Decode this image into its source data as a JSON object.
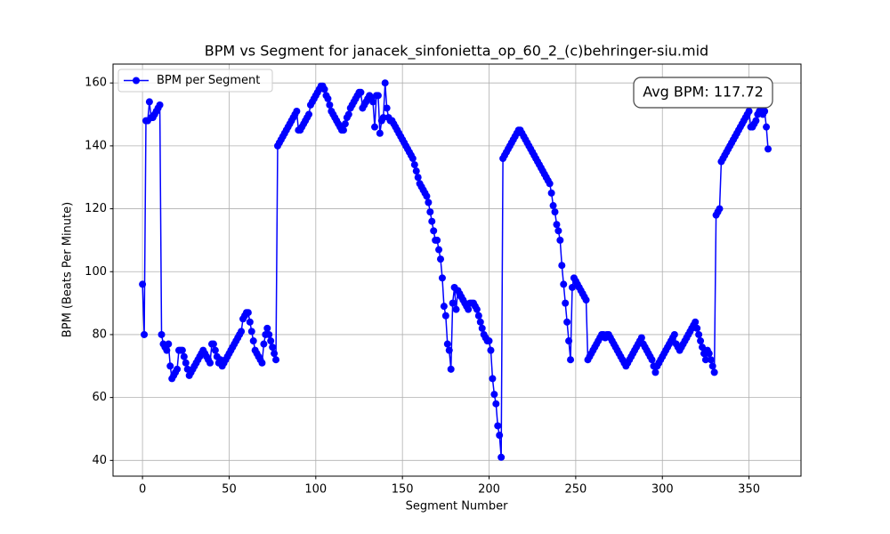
{
  "chart_data": {
    "type": "line",
    "title": "BPM vs Segment for janacek_sinfonietta_op_60_2_(c)behringer-siu.mid",
    "x_label": "Segment Number",
    "y_label": "BPM (Beats Per Minute)",
    "annotation": "Avg BPM: 117.72",
    "legend": "upper left",
    "grid": true,
    "xlim": [
      -17,
      380
    ],
    "ylim": [
      35,
      166
    ],
    "xticks": [
      0,
      50,
      100,
      150,
      200,
      250,
      300,
      350
    ],
    "yticks": [
      40,
      60,
      80,
      100,
      120,
      140,
      160
    ],
    "x": [
      0,
      1,
      2,
      3,
      4,
      5,
      6,
      7,
      8,
      9,
      10,
      11,
      12,
      13,
      14,
      15,
      16,
      17,
      18,
      19,
      20,
      21,
      22,
      23,
      24,
      25,
      26,
      27,
      28,
      29,
      30,
      31,
      32,
      33,
      34,
      35,
      36,
      37,
      38,
      39,
      40,
      41,
      42,
      43,
      44,
      45,
      46,
      47,
      48,
      49,
      50,
      51,
      52,
      53,
      54,
      55,
      56,
      57,
      58,
      59,
      60,
      61,
      62,
      63,
      64,
      65,
      66,
      67,
      68,
      69,
      70,
      71,
      72,
      73,
      74,
      75,
      76,
      77,
      78,
      79,
      80,
      81,
      82,
      83,
      84,
      85,
      86,
      87,
      88,
      89,
      90,
      91,
      92,
      93,
      94,
      95,
      96,
      97,
      98,
      99,
      100,
      101,
      102,
      103,
      104,
      105,
      106,
      107,
      108,
      109,
      110,
      111,
      112,
      113,
      114,
      115,
      116,
      117,
      118,
      119,
      120,
      121,
      122,
      123,
      124,
      125,
      126,
      127,
      128,
      129,
      130,
      131,
      132,
      133,
      134,
      135,
      136,
      137,
      138,
      139,
      140,
      141,
      142,
      143,
      144,
      145,
      146,
      147,
      148,
      149,
      150,
      151,
      152,
      153,
      154,
      155,
      156,
      157,
      158,
      159,
      160,
      161,
      162,
      163,
      164,
      165,
      166,
      167,
      168,
      169,
      170,
      171,
      172,
      173,
      174,
      175,
      176,
      177,
      178,
      179,
      180,
      181,
      182,
      183,
      184,
      185,
      186,
      187,
      188,
      189,
      190,
      191,
      192,
      193,
      194,
      195,
      196,
      197,
      198,
      199,
      200,
      201,
      202,
      203,
      204,
      205,
      206,
      207,
      208,
      209,
      210,
      211,
      212,
      213,
      214,
      215,
      216,
      217,
      218,
      219,
      220,
      221,
      222,
      223,
      224,
      225,
      226,
      227,
      228,
      229,
      230,
      231,
      232,
      233,
      234,
      235,
      236,
      237,
      238,
      239,
      240,
      241,
      242,
      243,
      244,
      245,
      246,
      247,
      248,
      249,
      250,
      251,
      252,
      253,
      254,
      255,
      256,
      257,
      258,
      259,
      260,
      261,
      262,
      263,
      264,
      265,
      266,
      267,
      268,
      269,
      270,
      271,
      272,
      273,
      274,
      275,
      276,
      277,
      278,
      279,
      280,
      281,
      282,
      283,
      284,
      285,
      286,
      287,
      288,
      289,
      290,
      291,
      292,
      293,
      294,
      295,
      296,
      297,
      298,
      299,
      300,
      301,
      302,
      303,
      304,
      305,
      306,
      307,
      308,
      309,
      310,
      311,
      312,
      313,
      314,
      315,
      316,
      317,
      318,
      319,
      320,
      321,
      322,
      323,
      324,
      325,
      326,
      327,
      328,
      329,
      330,
      331,
      332,
      333,
      334,
      335,
      336,
      337,
      338,
      339,
      340,
      341,
      342,
      343,
      344,
      345,
      346,
      347,
      348,
      349,
      350,
      351,
      352,
      353,
      354,
      355,
      356,
      357,
      358,
      359,
      360,
      361
    ],
    "series": [
      {
        "name": "BPM per Segment",
        "color": "#0000ff",
        "values": [
          96,
          80,
          148,
          148,
          154,
          149,
          149,
          150,
          151,
          152,
          153,
          80,
          77,
          76,
          75,
          77,
          70,
          66,
          67,
          68,
          69,
          75,
          75,
          75,
          73,
          71,
          69,
          67,
          68,
          69,
          70,
          71,
          72,
          73,
          74,
          75,
          74,
          73,
          72,
          71,
          77,
          77,
          75,
          73,
          71,
          72,
          70,
          71,
          72,
          73,
          74,
          75,
          76,
          77,
          78,
          79,
          80,
          81,
          85,
          86,
          87,
          87,
          84,
          81,
          78,
          75,
          74,
          73,
          72,
          71,
          77,
          80,
          82,
          80,
          78,
          76,
          74,
          72,
          140,
          141,
          142,
          143,
          144,
          145,
          146,
          147,
          148,
          149,
          150,
          151,
          145,
          145,
          146,
          147,
          148,
          149,
          150,
          153,
          154,
          155,
          156,
          157,
          158,
          159,
          159,
          158,
          156,
          155,
          153,
          151,
          150,
          149,
          148,
          147,
          146,
          145,
          145,
          147,
          149,
          150,
          152,
          153,
          154,
          155,
          156,
          157,
          157,
          152,
          153,
          154,
          155,
          156,
          155,
          154,
          146,
          156,
          156,
          144,
          148,
          149,
          160,
          152,
          149,
          148,
          148,
          147,
          146,
          145,
          144,
          143,
          142,
          141,
          140,
          139,
          138,
          137,
          136,
          134,
          132,
          130,
          128,
          127,
          126,
          125,
          124,
          122,
          119,
          116,
          113,
          110,
          110,
          107,
          104,
          98,
          89,
          86,
          77,
          75,
          69,
          90,
          95,
          88,
          94,
          93,
          92,
          91,
          90,
          89,
          88,
          90,
          90,
          90,
          89,
          88,
          86,
          84,
          82,
          80,
          79,
          78,
          78,
          75,
          66,
          61,
          58,
          51,
          48,
          41,
          136,
          137,
          138,
          139,
          140,
          141,
          142,
          143,
          144,
          145,
          145,
          144,
          143,
          142,
          141,
          140,
          139,
          138,
          137,
          136,
          135,
          134,
          133,
          132,
          131,
          130,
          129,
          128,
          125,
          121,
          119,
          115,
          113,
          110,
          102,
          96,
          90,
          84,
          78,
          72,
          95,
          98,
          97,
          96,
          95,
          94,
          93,
          92,
          91,
          72,
          73,
          74,
          75,
          76,
          77,
          78,
          79,
          80,
          80,
          79,
          80,
          80,
          79,
          78,
          77,
          76,
          75,
          74,
          73,
          72,
          71,
          70,
          71,
          72,
          73,
          74,
          75,
          76,
          77,
          78,
          79,
          77,
          76,
          75,
          74,
          73,
          72,
          70,
          68,
          70,
          71,
          72,
          73,
          74,
          75,
          76,
          77,
          78,
          79,
          80,
          77,
          76,
          75,
          76,
          77,
          78,
          79,
          80,
          81,
          82,
          83,
          84,
          82,
          80,
          78,
          76,
          74,
          72,
          75,
          74,
          72,
          70,
          68,
          118,
          119,
          120,
          135,
          136,
          137,
          138,
          139,
          140,
          141,
          142,
          143,
          144,
          145,
          146,
          147,
          148,
          149,
          150,
          151,
          146,
          146,
          147,
          148,
          150,
          151,
          152,
          150,
          151,
          146,
          139
        ]
      }
    ]
  }
}
